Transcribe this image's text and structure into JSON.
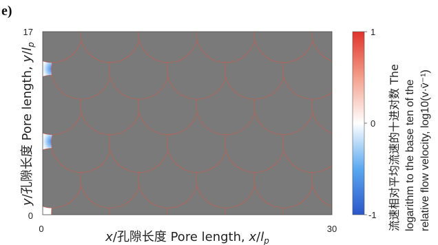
{
  "panel_label": "e)",
  "chart_data": {
    "type": "heatmap",
    "title": "",
    "xlabel": {
      "var": "x",
      "cn": "/孔隙长度 Pore length, ",
      "var2": "x",
      "sep": "/",
      "var3": "l",
      "sub": "p"
    },
    "ylabel": {
      "var": "y",
      "cn": "/孔隙长度 Pore length, ",
      "var2": "y",
      "sep": "/",
      "var3": "l",
      "sub": "p"
    },
    "xlim": [
      0,
      30
    ],
    "ylim": [
      0,
      17
    ],
    "x_ticks": [
      "0",
      "30"
    ],
    "y_ticks": [
      "0",
      "17"
    ],
    "colorbar": {
      "range": [
        -1,
        1
      ],
      "ticks": [
        "1",
        "0",
        "-1"
      ],
      "colormap": [
        "#2b56c8",
        "#5aa8f0",
        "#ffffff",
        "#f3a08c",
        "#e0322b"
      ],
      "label_lines": [
        "流速相对平均流速的十进对数 The",
        "logarithm to the base ten of the",
        "relative flow velocity, log10(v·v̄⁻¹)"
      ]
    },
    "grain_color": "#7a7a7a",
    "grain_radius": 3.1,
    "grain_centers": [
      [
        4,
        0.2
      ],
      [
        10,
        0.2
      ],
      [
        16,
        0.2
      ],
      [
        22,
        0.2
      ],
      [
        28,
        0.2
      ],
      [
        1,
        3.4
      ],
      [
        7,
        3.4
      ],
      [
        13,
        3.4
      ],
      [
        19,
        3.4
      ],
      [
        25,
        3.4
      ],
      [
        31,
        3.4
      ],
      [
        4,
        6.7
      ],
      [
        10,
        6.7
      ],
      [
        16,
        6.7
      ],
      [
        22,
        6.7
      ],
      [
        28,
        6.7
      ],
      [
        1,
        10.2
      ],
      [
        7,
        10.2
      ],
      [
        13,
        10.2
      ],
      [
        19,
        10.2
      ],
      [
        25,
        10.2
      ],
      [
        31,
        10.2
      ],
      [
        4,
        13.5
      ],
      [
        10,
        13.5
      ],
      [
        16,
        13.5
      ],
      [
        22,
        13.5
      ],
      [
        28,
        13.5
      ],
      [
        1,
        16.9
      ],
      [
        7,
        16.9
      ],
      [
        13,
        16.9
      ],
      [
        19,
        16.9
      ],
      [
        25,
        16.9
      ],
      [
        31,
        16.9
      ]
    ]
  }
}
